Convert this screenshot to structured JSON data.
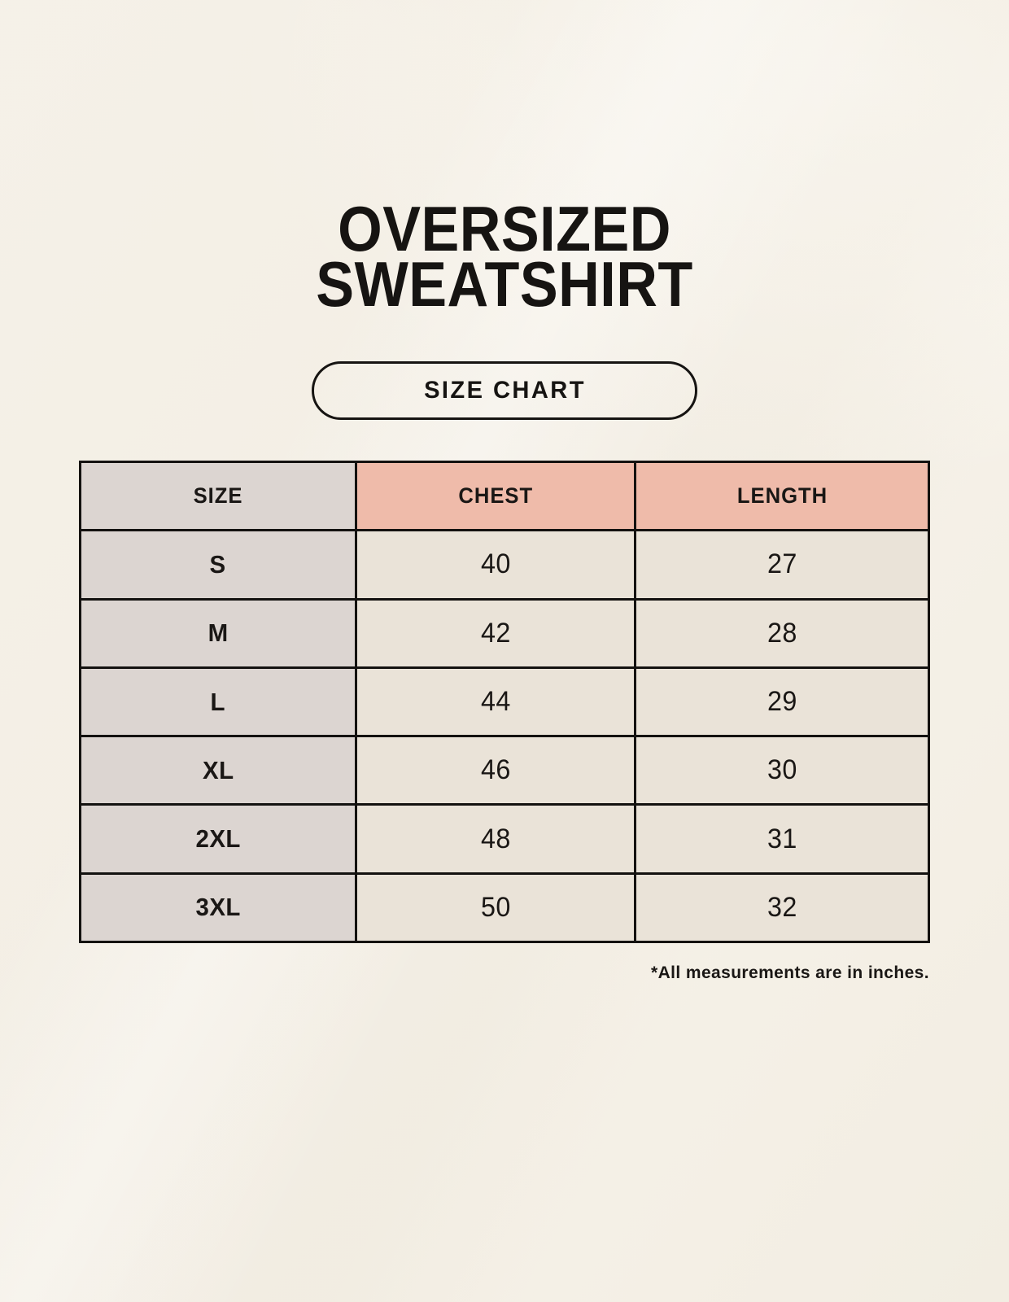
{
  "page": {
    "title_line1": "OVERSIZED",
    "title_line2": "SWEATSHIRT",
    "badge_label": "SIZE CHART",
    "footnote": "*All measurements are in inches."
  },
  "table": {
    "columns": [
      "SIZE",
      "CHEST",
      "LENGTH"
    ],
    "rows": [
      {
        "size": "S",
        "chest": "40",
        "length": "27"
      },
      {
        "size": "M",
        "chest": "42",
        "length": "28"
      },
      {
        "size": "L",
        "chest": "44",
        "length": "29"
      },
      {
        "size": "XL",
        "chest": "46",
        "length": "30"
      },
      {
        "size": "2XL",
        "chest": "48",
        "length": "31"
      },
      {
        "size": "3XL",
        "chest": "50",
        "length": "32"
      }
    ]
  },
  "chart_data": {
    "type": "table",
    "title": "OVERSIZED SWEATSHIRT — SIZE CHART",
    "columns": [
      "SIZE",
      "CHEST",
      "LENGTH"
    ],
    "rows": [
      [
        "S",
        40,
        27
      ],
      [
        "M",
        42,
        28
      ],
      [
        "L",
        44,
        29
      ],
      [
        "XL",
        46,
        30
      ],
      [
        "2XL",
        48,
        31
      ],
      [
        "3XL",
        50,
        32
      ]
    ],
    "units": "inches"
  },
  "colors": {
    "background": "#F7F3EB",
    "label_column_bg": "#DCD5D1",
    "measure_header_bg": "#EFBBAA",
    "value_cell_bg": "#EAE3D8",
    "border": "#141210",
    "text": "#1A1715"
  }
}
